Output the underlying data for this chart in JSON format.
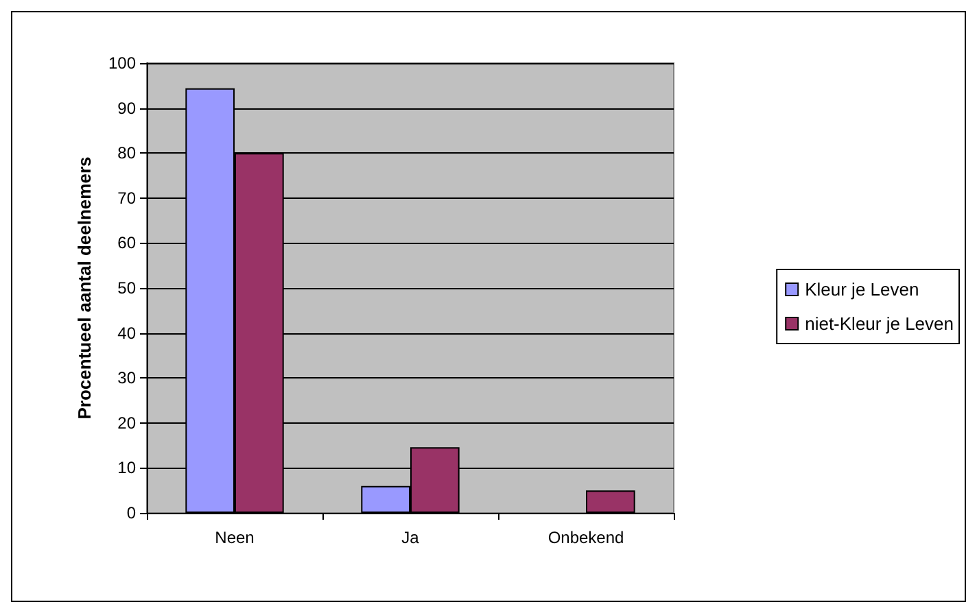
{
  "chart_data": {
    "type": "bar",
    "ylabel": "Procentueel aantal deelnemers",
    "categories": [
      "Neen",
      "Ja",
      "Onbekend"
    ],
    "series": [
      {
        "name": "Kleur je Leven",
        "color": "#9999ff",
        "values": [
          94.4,
          6,
          null
        ]
      },
      {
        "name": "niet-Kleur je Leven",
        "color": "#993366",
        "values": [
          80,
          14.6,
          5
        ]
      }
    ],
    "ylim": [
      0,
      100
    ],
    "yticks": [
      0,
      10,
      20,
      30,
      40,
      50,
      60,
      70,
      80,
      90,
      100
    ],
    "grid": "y",
    "legend": "right"
  }
}
